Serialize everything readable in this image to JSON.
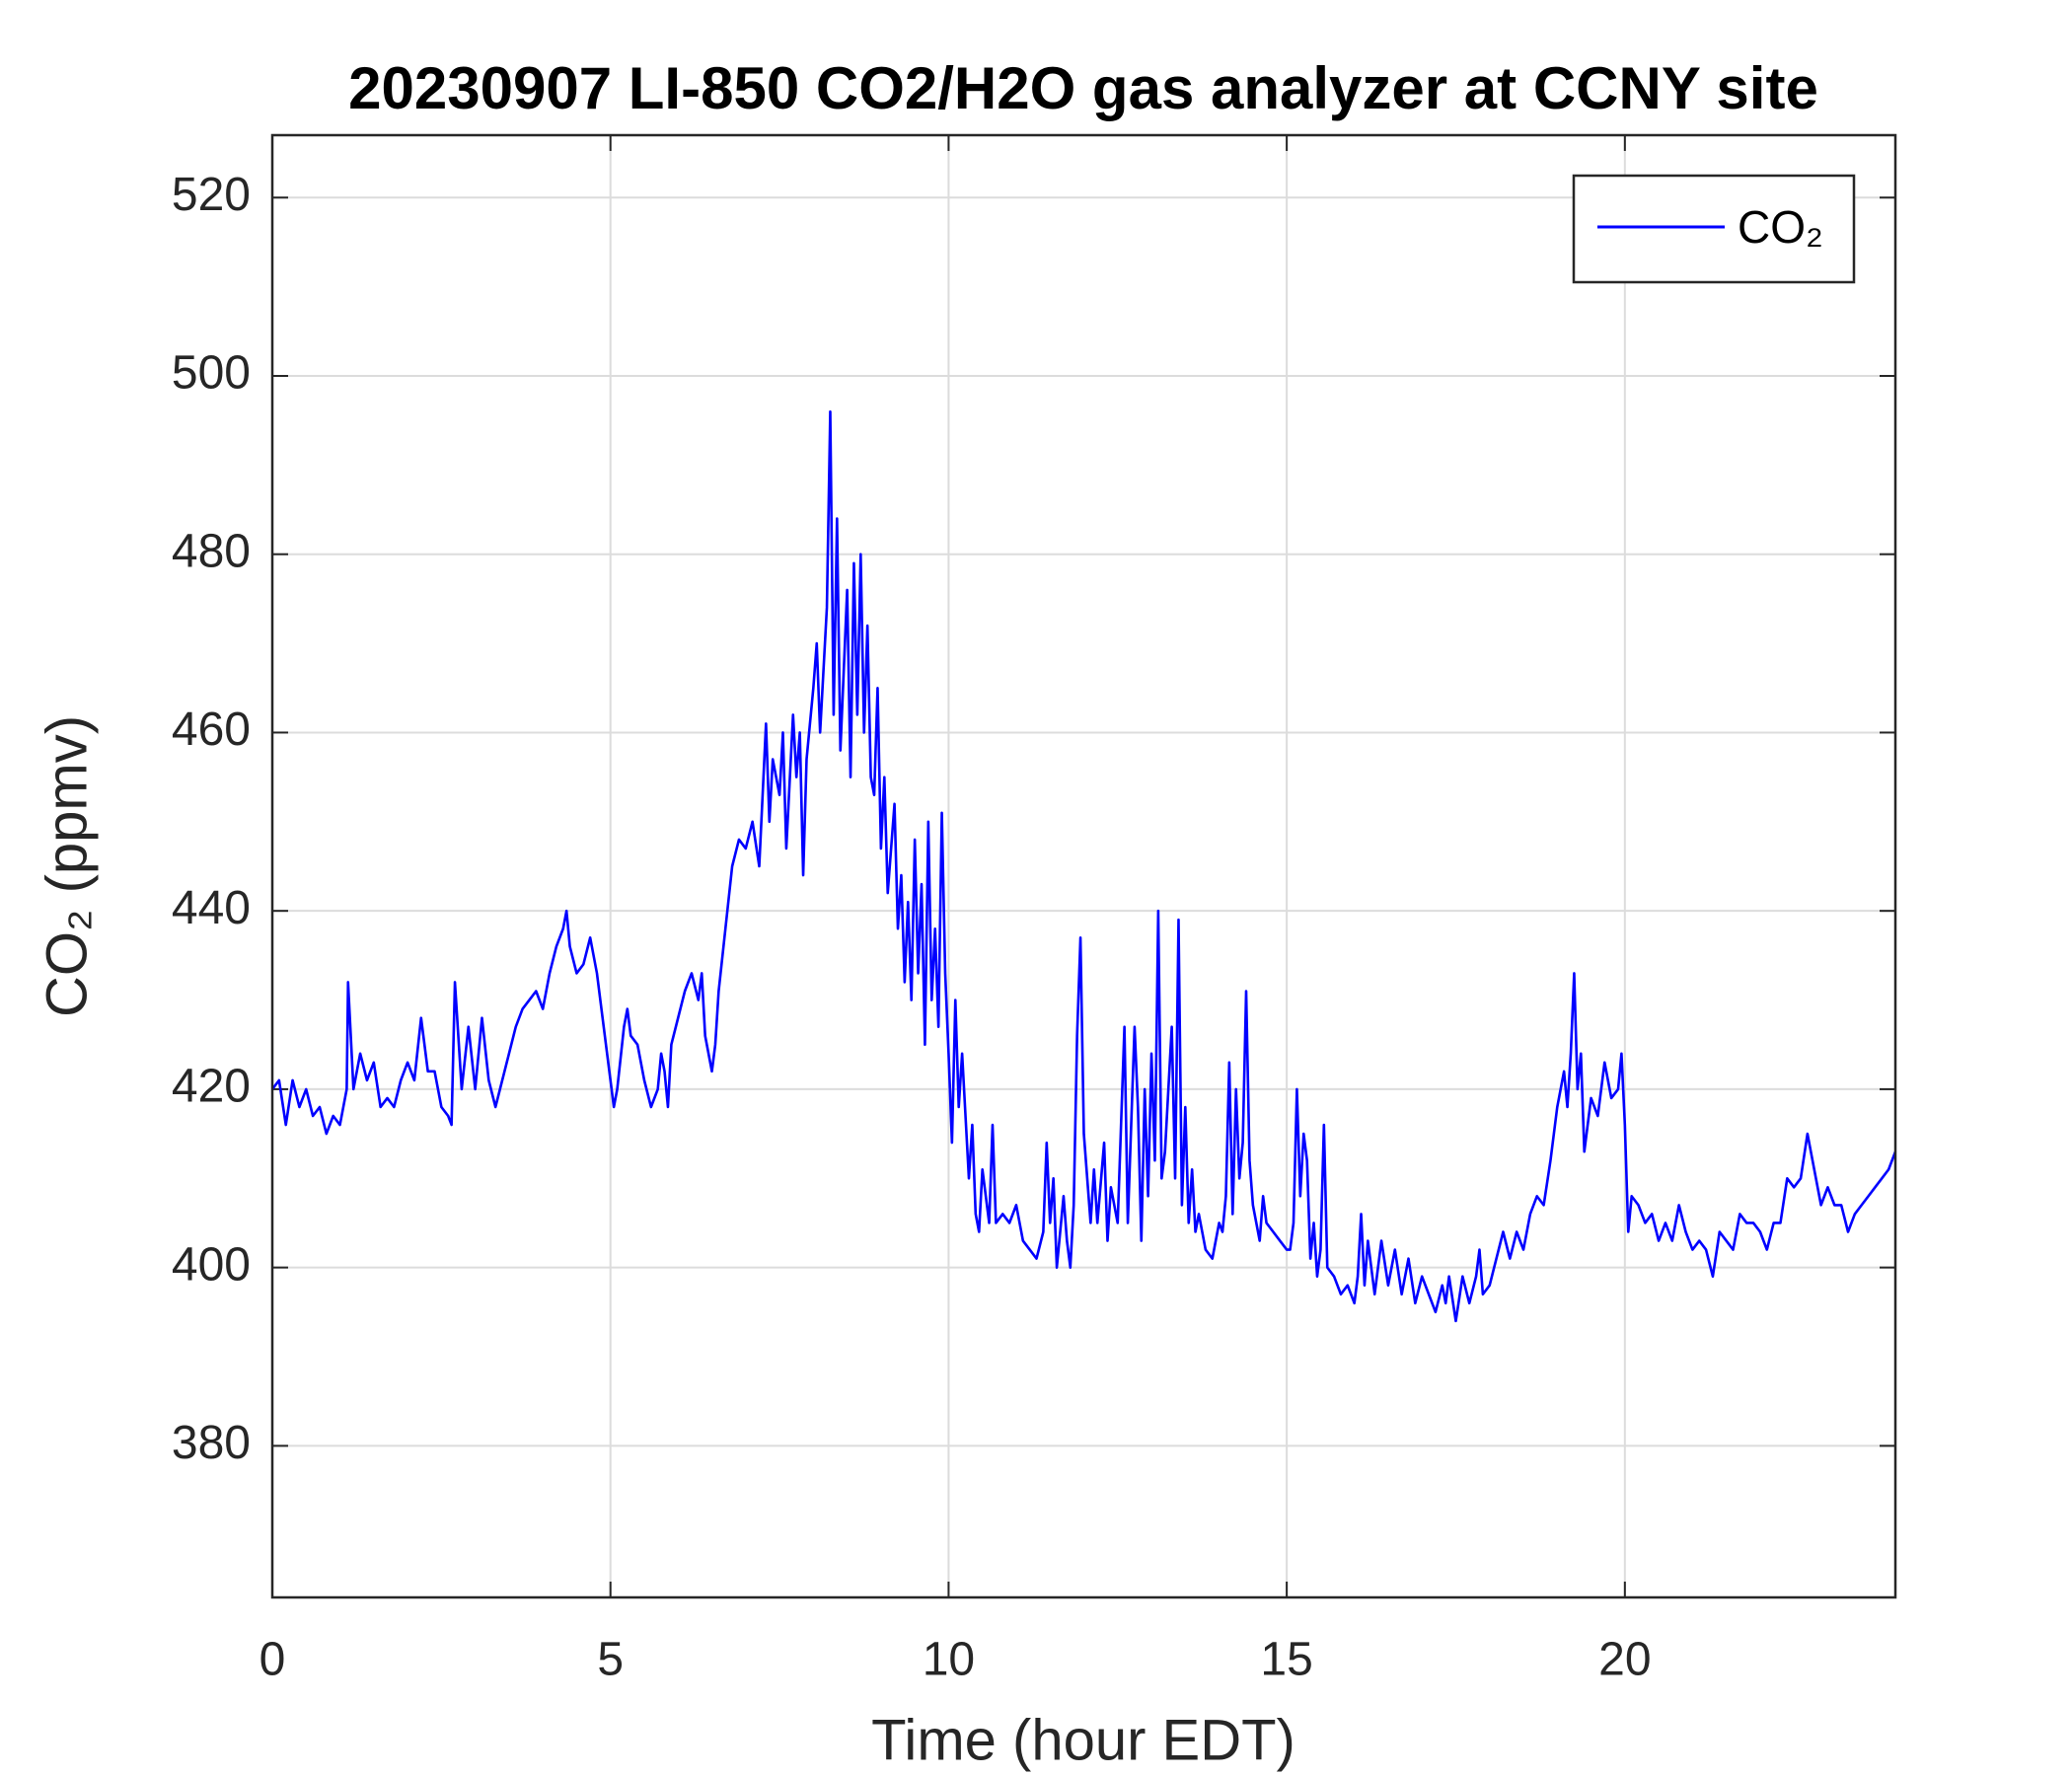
{
  "chart_data": {
    "type": "line",
    "title": "20230907 LI-850 CO2/H2O gas analyzer at CCNY site",
    "x_label": "Time (hour EDT)",
    "y_label": "CO₂ (ppmv)",
    "x": [
      0.0,
      0.1,
      0.2,
      0.3,
      0.4,
      0.5,
      0.6,
      0.7,
      0.8,
      0.9,
      1.0,
      1.1,
      1.12,
      1.2,
      1.3,
      1.4,
      1.5,
      1.6,
      1.7,
      1.8,
      1.9,
      2.0,
      2.1,
      2.2,
      2.3,
      2.4,
      2.5,
      2.6,
      2.65,
      2.7,
      2.8,
      2.9,
      3.0,
      3.1,
      3.2,
      3.3,
      3.4,
      3.5,
      3.6,
      3.7,
      3.8,
      3.9,
      4.0,
      4.1,
      4.2,
      4.3,
      4.35,
      4.4,
      4.5,
      4.6,
      4.7,
      4.8,
      4.9,
      5.0,
      5.05,
      5.1,
      5.2,
      5.25,
      5.3,
      5.4,
      5.5,
      5.6,
      5.7,
      5.75,
      5.8,
      5.85,
      5.9,
      6.0,
      6.1,
      6.2,
      6.3,
      6.35,
      6.4,
      6.5,
      6.55,
      6.6,
      6.7,
      6.8,
      6.9,
      7.0,
      7.1,
      7.2,
      7.3,
      7.35,
      7.4,
      7.5,
      7.55,
      7.6,
      7.7,
      7.75,
      7.8,
      7.85,
      7.9,
      8.0,
      8.05,
      8.1,
      8.2,
      8.25,
      8.3,
      8.35,
      8.4,
      8.5,
      8.55,
      8.6,
      8.65,
      8.7,
      8.75,
      8.8,
      8.85,
      8.9,
      8.95,
      9.0,
      9.05,
      9.1,
      9.2,
      9.25,
      9.3,
      9.35,
      9.4,
      9.45,
      9.5,
      9.55,
      9.6,
      9.65,
      9.7,
      9.75,
      9.8,
      9.85,
      9.9,
      9.95,
      10.0,
      10.05,
      10.1,
      10.15,
      10.2,
      10.3,
      10.35,
      10.4,
      10.45,
      10.5,
      10.6,
      10.65,
      10.7,
      10.8,
      10.9,
      11.0,
      11.1,
      11.2,
      11.3,
      11.4,
      11.45,
      11.5,
      11.55,
      11.6,
      11.7,
      11.75,
      11.8,
      11.85,
      11.9,
      11.95,
      12.0,
      12.1,
      12.15,
      12.2,
      12.3,
      12.35,
      12.4,
      12.5,
      12.6,
      12.65,
      12.7,
      12.75,
      12.8,
      12.85,
      12.9,
      12.95,
      13.0,
      13.05,
      13.1,
      13.15,
      13.2,
      13.3,
      13.35,
      13.4,
      13.45,
      13.5,
      13.55,
      13.6,
      13.65,
      13.7,
      13.8,
      13.9,
      14.0,
      14.05,
      14.1,
      14.15,
      14.2,
      14.25,
      14.3,
      14.35,
      14.4,
      14.45,
      14.5,
      14.6,
      14.65,
      14.7,
      14.8,
      14.9,
      15.0,
      15.05,
      15.1,
      15.15,
      15.2,
      15.25,
      15.3,
      15.35,
      15.4,
      15.45,
      15.5,
      15.55,
      15.6,
      15.7,
      15.8,
      15.9,
      16.0,
      16.05,
      16.1,
      16.15,
      16.2,
      16.3,
      16.4,
      16.5,
      16.6,
      16.7,
      16.8,
      16.9,
      17.0,
      17.1,
      17.2,
      17.3,
      17.35,
      17.4,
      17.5,
      17.6,
      17.7,
      17.8,
      17.85,
      17.9,
      18.0,
      18.1,
      18.2,
      18.3,
      18.4,
      18.5,
      18.6,
      18.7,
      18.8,
      18.9,
      19.0,
      19.1,
      19.15,
      19.2,
      19.25,
      19.3,
      19.35,
      19.4,
      19.5,
      19.6,
      19.7,
      19.8,
      19.9,
      19.95,
      20.0,
      20.05,
      20.1,
      20.2,
      20.3,
      20.4,
      20.5,
      20.6,
      20.7,
      20.8,
      20.9,
      21.0,
      21.1,
      21.2,
      21.3,
      21.4,
      21.5,
      21.6,
      21.7,
      21.8,
      21.9,
      22.0,
      22.1,
      22.2,
      22.3,
      22.4,
      22.5,
      22.6,
      22.7,
      22.8,
      22.9,
      23.0,
      23.1,
      23.2,
      23.3,
      23.4,
      23.5,
      23.6,
      23.7,
      23.8,
      23.9,
      24.0
    ],
    "series": [
      {
        "name": "CO₂",
        "color": "#0000ff",
        "values": [
          420,
          421,
          416,
          421,
          418,
          420,
          417,
          418,
          415,
          417,
          416,
          420,
          432,
          420,
          424,
          421,
          423,
          418,
          419,
          418,
          421,
          423,
          421,
          428,
          422,
          422,
          418,
          417,
          416,
          432,
          420,
          427,
          420,
          428,
          421,
          418,
          421,
          424,
          427,
          429,
          430,
          431,
          429,
          433,
          436,
          438,
          440,
          436,
          433,
          434,
          437,
          433,
          427,
          421,
          418,
          420,
          427,
          429,
          426,
          425,
          421,
          418,
          420,
          424,
          422,
          418,
          425,
          428,
          431,
          433,
          430,
          433,
          426,
          422,
          425,
          431,
          438,
          445,
          448,
          447,
          450,
          445,
          461,
          450,
          457,
          453,
          460,
          447,
          462,
          455,
          460,
          444,
          457,
          465,
          470,
          460,
          474,
          496,
          462,
          484,
          458,
          476,
          455,
          479,
          462,
          480,
          460,
          472,
          455,
          453,
          465,
          447,
          455,
          442,
          452,
          438,
          444,
          432,
          441,
          430,
          448,
          433,
          443,
          425,
          450,
          430,
          438,
          427,
          451,
          433,
          424,
          414,
          430,
          418,
          424,
          410,
          416,
          406,
          404,
          411,
          405,
          416,
          405,
          406,
          405,
          407,
          403,
          402,
          401,
          404,
          414,
          405,
          410,
          400,
          408,
          403,
          400,
          407,
          426,
          437,
          415,
          405,
          411,
          405,
          414,
          403,
          409,
          405,
          427,
          405,
          416,
          427,
          418,
          403,
          420,
          408,
          424,
          412,
          440,
          410,
          413,
          427,
          410,
          439,
          407,
          418,
          405,
          411,
          404,
          406,
          402,
          401,
          405,
          404,
          408,
          423,
          406,
          420,
          410,
          414,
          431,
          412,
          407,
          403,
          408,
          405,
          404,
          403,
          402,
          402,
          405,
          420,
          408,
          415,
          412,
          401,
          405,
          399,
          402,
          416,
          400,
          399,
          397,
          398,
          396,
          399,
          406,
          398,
          403,
          397,
          403,
          398,
          402,
          397,
          401,
          396,
          399,
          397,
          395,
          398,
          396,
          399,
          394,
          399,
          396,
          399,
          402,
          397,
          398,
          401,
          404,
          401,
          404,
          402,
          406,
          408,
          407,
          412,
          418,
          422,
          418,
          424,
          433,
          420,
          424,
          413,
          419,
          417,
          423,
          419,
          420,
          424,
          416,
          404,
          408,
          407,
          405,
          406,
          403,
          405,
          403,
          407,
          404,
          402,
          403,
          402,
          399,
          404,
          403,
          402,
          406,
          405,
          405,
          404,
          402,
          405,
          405,
          410,
          409,
          410,
          415,
          411,
          407,
          409,
          407,
          407,
          404,
          406,
          407,
          408,
          409,
          410,
          411,
          413
        ]
      }
    ],
    "xlim": [
      0,
      24
    ],
    "xticks": [
      0,
      5,
      10,
      15,
      20
    ],
    "ylim": [
      363,
      527
    ],
    "yticks": [
      380,
      400,
      420,
      440,
      460,
      480,
      500,
      520
    ],
    "grid": true,
    "legend": "upper right"
  }
}
